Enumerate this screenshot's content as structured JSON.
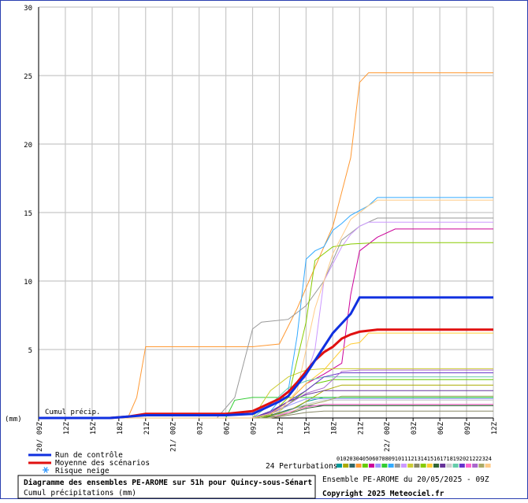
{
  "colors": {
    "control": "#1030e0",
    "mean": "#e01010",
    "grid": "#c8c8c8",
    "snow": "#3399ff",
    "frame": "#2a3fb0"
  },
  "labels": {
    "cumul": "Cumul précip.",
    "mm": "(mm)",
    "control_legend": "Run de contrôle",
    "mean_legend": "Moyenne des scénarios",
    "snow_legend": "Risque neige",
    "snow_icon": "snowflake-icon",
    "perturbations": "24 Perturbations",
    "title": "Diagramme des ensembles PE-AROME sur 51h pour Quincy-sous-Sénart",
    "subtitle": "Cumul précipitations (mm)",
    "run_info": "Ensemble PE-AROME du 20/05/2025 - 09Z",
    "copyright": "Copyright 2025 Meteociel.fr"
  },
  "chart_data": {
    "type": "line",
    "title": "Diagramme des ensembles PE-AROME sur 51h pour Quincy-sous-Sénart",
    "ylabel": "Cumul précip.",
    "yunit": "(mm)",
    "ylim": [
      0,
      30
    ],
    "yticks": [
      0,
      5,
      10,
      15,
      20,
      25,
      30
    ],
    "x_hours": [
      0,
      51
    ],
    "xticks": [
      {
        "h": 0,
        "label": "20/ 09Z"
      },
      {
        "h": 3,
        "label": "12Z"
      },
      {
        "h": 6,
        "label": "15Z"
      },
      {
        "h": 9,
        "label": "18Z"
      },
      {
        "h": 12,
        "label": "21Z"
      },
      {
        "h": 15,
        "label": "21/ 00Z"
      },
      {
        "h": 18,
        "label": "03Z"
      },
      {
        "h": 21,
        "label": "06Z"
      },
      {
        "h": 24,
        "label": "09Z"
      },
      {
        "h": 27,
        "label": "12Z"
      },
      {
        "h": 30,
        "label": "15Z"
      },
      {
        "h": 33,
        "label": "18Z"
      },
      {
        "h": 36,
        "label": "21Z"
      },
      {
        "h": 39,
        "label": "22/ 00Z"
      },
      {
        "h": 42,
        "label": "03Z"
      },
      {
        "h": 45,
        "label": "06Z"
      },
      {
        "h": 48,
        "label": "09Z"
      },
      {
        "h": 51,
        "label": "12Z"
      }
    ],
    "grid": true,
    "control": {
      "name": "Run de contrôle",
      "points": [
        [
          0,
          0
        ],
        [
          8,
          0
        ],
        [
          10,
          0.1
        ],
        [
          12,
          0.2
        ],
        [
          21,
          0.2
        ],
        [
          24,
          0.3
        ],
        [
          25,
          0.6
        ],
        [
          26,
          0.9
        ],
        [
          27,
          1.2
        ],
        [
          28,
          1.6
        ],
        [
          29,
          2.4
        ],
        [
          30,
          3.2
        ],
        [
          31,
          4.2
        ],
        [
          32,
          5.2
        ],
        [
          33,
          6.2
        ],
        [
          34,
          6.9
        ],
        [
          35,
          7.6
        ],
        [
          36,
          8.8
        ],
        [
          51,
          8.8
        ]
      ]
    },
    "mean": {
      "name": "Moyenne des scénarios",
      "points": [
        [
          0,
          0
        ],
        [
          8,
          0
        ],
        [
          10,
          0.1
        ],
        [
          12,
          0.3
        ],
        [
          21,
          0.3
        ],
        [
          24,
          0.5
        ],
        [
          25,
          0.8
        ],
        [
          26,
          1.1
        ],
        [
          27,
          1.4
        ],
        [
          28,
          1.9
        ],
        [
          29,
          2.6
        ],
        [
          30,
          3.4
        ],
        [
          31,
          4.2
        ],
        [
          32,
          4.8
        ],
        [
          33,
          5.2
        ],
        [
          34,
          5.8
        ],
        [
          35,
          6.1
        ],
        [
          36,
          6.3
        ],
        [
          38,
          6.45
        ],
        [
          51,
          6.45
        ]
      ]
    },
    "perturbation_colors": [
      "#009999",
      "#aaaa00",
      "#336666",
      "#ff9933",
      "#66cc00",
      "#cc0099",
      "#9999ff",
      "#33cc33",
      "#33aaff",
      "#999999",
      "#cc99ff",
      "#cccc33",
      "#888866",
      "#88cc00",
      "#ffcc33",
      "#336633",
      "#663399",
      "#cccccc",
      "#66ccaa",
      "#6633cc",
      "#ff66cc",
      "#aa66cc",
      "#aaaa66",
      "#ffcc88"
    ],
    "perturbation_ids": [
      "01",
      "02",
      "03",
      "04",
      "05",
      "06",
      "07",
      "08",
      "09",
      "10",
      "11",
      "12",
      "13",
      "14",
      "15",
      "16",
      "17",
      "18",
      "19",
      "20",
      "21",
      "22",
      "23",
      "24"
    ],
    "perturbations": [
      [
        [
          0,
          0
        ],
        [
          24,
          0
        ],
        [
          27,
          0.3
        ],
        [
          29,
          0.8
        ],
        [
          30,
          1.2
        ],
        [
          32,
          1.5
        ],
        [
          51,
          1.5
        ]
      ],
      [
        [
          0,
          0
        ],
        [
          25,
          0
        ],
        [
          28,
          0.5
        ],
        [
          30,
          1.2
        ],
        [
          32,
          2.0
        ],
        [
          34,
          2.4
        ],
        [
          51,
          2.4
        ]
      ],
      [
        [
          0,
          0
        ],
        [
          24,
          0
        ],
        [
          26,
          0.2
        ],
        [
          28,
          0.6
        ],
        [
          30,
          0.9
        ],
        [
          51,
          0.9
        ]
      ],
      [
        [
          0,
          0
        ],
        [
          10,
          0
        ],
        [
          11,
          1.5
        ],
        [
          12,
          5.2
        ],
        [
          24,
          5.2
        ],
        [
          27,
          5.4
        ],
        [
          29,
          8.0
        ],
        [
          31,
          11.0
        ],
        [
          33,
          14.0
        ],
        [
          35,
          19.0
        ],
        [
          36,
          24.5
        ],
        [
          37,
          25.2
        ],
        [
          51,
          25.2
        ]
      ],
      [
        [
          0,
          0
        ],
        [
          24,
          0
        ],
        [
          27,
          0.5
        ],
        [
          29,
          1.5
        ],
        [
          31,
          2.5
        ],
        [
          33,
          2.8
        ],
        [
          51,
          2.8
        ]
      ],
      [
        [
          0,
          0
        ],
        [
          24,
          0
        ],
        [
          26,
          0.4
        ],
        [
          28,
          1.2
        ],
        [
          30,
          2.5
        ],
        [
          32,
          3.2
        ],
        [
          34,
          4.0
        ],
        [
          35,
          9.0
        ],
        [
          36,
          12.2
        ],
        [
          38,
          13.2
        ],
        [
          40,
          13.8
        ],
        [
          51,
          13.8
        ]
      ],
      [
        [
          0,
          0
        ],
        [
          24,
          0
        ],
        [
          26,
          0.3
        ],
        [
          28,
          0.9
        ],
        [
          30,
          1.4
        ],
        [
          51,
          1.4
        ]
      ],
      [
        [
          0,
          0
        ],
        [
          21,
          0
        ],
        [
          22,
          1.3
        ],
        [
          24,
          1.5
        ],
        [
          51,
          1.5
        ]
      ],
      [
        [
          0,
          0
        ],
        [
          24,
          0
        ],
        [
          26,
          0.5
        ],
        [
          28,
          2.0
        ],
        [
          29,
          6.0
        ],
        [
          30,
          11.6
        ],
        [
          31,
          12.2
        ],
        [
          32,
          12.5
        ],
        [
          33,
          13.7
        ],
        [
          34,
          14.2
        ],
        [
          35,
          14.8
        ],
        [
          37,
          15.5
        ],
        [
          38,
          16.1
        ],
        [
          51,
          16.1
        ]
      ],
      [
        [
          0,
          0
        ],
        [
          20,
          0
        ],
        [
          22,
          1.5
        ],
        [
          24,
          6.5
        ],
        [
          25,
          7.0
        ],
        [
          28,
          7.2
        ],
        [
          30,
          8.2
        ],
        [
          32,
          10.0
        ],
        [
          34,
          13.0
        ],
        [
          36,
          14.0
        ],
        [
          38,
          14.6
        ],
        [
          51,
          14.6
        ]
      ],
      [
        [
          0,
          0
        ],
        [
          24,
          0
        ],
        [
          26,
          1.0
        ],
        [
          28,
          2.0
        ],
        [
          30,
          3.0
        ],
        [
          31,
          5.0
        ],
        [
          32,
          10.0
        ],
        [
          34,
          12.5
        ],
        [
          35,
          13.4
        ],
        [
          36,
          14.0
        ],
        [
          37,
          14.3
        ],
        [
          51,
          14.3
        ]
      ],
      [
        [
          0,
          0
        ],
        [
          24,
          0
        ],
        [
          26,
          2.0
        ],
        [
          28,
          3.0
        ],
        [
          30,
          3.5
        ],
        [
          32,
          3.6
        ],
        [
          51,
          3.6
        ]
      ],
      [
        [
          0,
          0
        ],
        [
          26,
          0
        ],
        [
          28,
          0.2
        ],
        [
          30,
          0.4
        ],
        [
          32,
          0.5
        ],
        [
          51,
          0.5
        ]
      ],
      [
        [
          0,
          0
        ],
        [
          24,
          0
        ],
        [
          26,
          0.2
        ],
        [
          28,
          1.5
        ],
        [
          30,
          7.0
        ],
        [
          31,
          11.5
        ],
        [
          33,
          12.5
        ],
        [
          35,
          12.7
        ],
        [
          38,
          12.8
        ],
        [
          51,
          12.8
        ]
      ],
      [
        [
          0,
          0
        ],
        [
          24,
          0
        ],
        [
          26,
          0.3
        ],
        [
          28,
          1.2
        ],
        [
          30,
          2.5
        ],
        [
          32,
          3.5
        ],
        [
          34,
          5.0
        ],
        [
          35,
          5.4
        ],
        [
          36,
          5.5
        ],
        [
          37,
          6.2
        ],
        [
          51,
          6.2
        ]
      ],
      [
        [
          0,
          0
        ],
        [
          25,
          0
        ],
        [
          28,
          0.3
        ],
        [
          30,
          0.7
        ],
        [
          32,
          0.9
        ],
        [
          51,
          0.9
        ]
      ],
      [
        [
          0,
          0
        ],
        [
          24,
          0
        ],
        [
          26,
          0.5
        ],
        [
          28,
          1.2
        ],
        [
          30,
          1.7
        ],
        [
          32,
          2.0
        ],
        [
          51,
          2.0
        ]
      ],
      [
        [
          0,
          0
        ],
        [
          26,
          0
        ],
        [
          28,
          0.5
        ],
        [
          30,
          1.0
        ],
        [
          32,
          1.3
        ],
        [
          51,
          1.3
        ]
      ],
      [
        [
          0,
          0
        ],
        [
          24,
          0
        ],
        [
          26,
          1.0
        ],
        [
          28,
          2.2
        ],
        [
          30,
          2.7
        ],
        [
          32,
          3.0
        ],
        [
          51,
          3.0
        ]
      ],
      [
        [
          0,
          0
        ],
        [
          24,
          0
        ],
        [
          26,
          0.4
        ],
        [
          28,
          1.2
        ],
        [
          30,
          2.0
        ],
        [
          32,
          3.0
        ],
        [
          34,
          3.3
        ],
        [
          51,
          3.3
        ]
      ],
      [
        [
          0,
          0
        ],
        [
          26,
          0
        ],
        [
          28,
          0.4
        ],
        [
          30,
          0.8
        ],
        [
          32,
          1.0
        ],
        [
          51,
          1.0
        ]
      ],
      [
        [
          0,
          0
        ],
        [
          24,
          0
        ],
        [
          26,
          0.3
        ],
        [
          28,
          1.0
        ],
        [
          30,
          1.8
        ],
        [
          32,
          2.2
        ],
        [
          34,
          3.4
        ],
        [
          36,
          3.5
        ],
        [
          51,
          3.5
        ]
      ],
      [
        [
          0,
          0
        ],
        [
          26,
          0
        ],
        [
          28,
          0.3
        ],
        [
          30,
          0.9
        ],
        [
          32,
          1.2
        ],
        [
          34,
          1.6
        ],
        [
          51,
          1.6
        ]
      ],
      [
        [
          0,
          0
        ],
        [
          24,
          0
        ],
        [
          27,
          0.5
        ],
        [
          29,
          2.0
        ],
        [
          31,
          8.0
        ],
        [
          33,
          12.0
        ],
        [
          35,
          14.5
        ],
        [
          37,
          15.5
        ],
        [
          38,
          15.9
        ],
        [
          51,
          15.9
        ]
      ]
    ]
  }
}
